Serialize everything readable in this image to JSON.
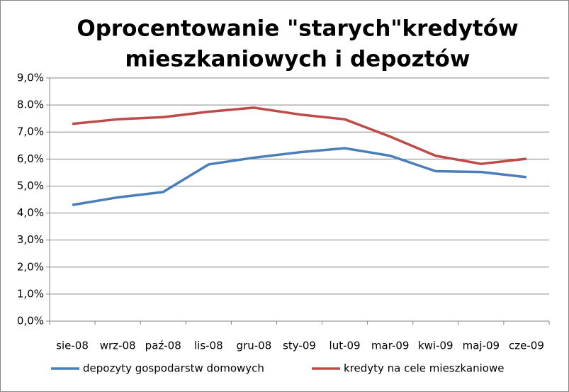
{
  "chart_data": {
    "type": "line",
    "title": [
      "Oprocentowanie  \"starych\"kredytów",
      "mieszkaniowych i depoztów"
    ],
    "categories": [
      "sie-08",
      "wrz-08",
      "paź-08",
      "lis-08",
      "gru-08",
      "sty-09",
      "lut-09",
      "mar-09",
      "kwi-09",
      "maj-09",
      "cze-09"
    ],
    "series": [
      {
        "name": "depozyty gospodarstw domowych",
        "color": "#4a7ebb",
        "values": [
          4.3,
          4.58,
          4.78,
          5.8,
          6.05,
          6.25,
          6.4,
          6.12,
          5.55,
          5.52,
          5.33
        ]
      },
      {
        "name": "kredyty na cele mieszkaniowe",
        "color": "#be4b48",
        "values": [
          7.3,
          7.47,
          7.55,
          7.75,
          7.9,
          7.65,
          7.47,
          6.83,
          6.12,
          5.82,
          6.01
        ]
      }
    ],
    "ylim": [
      0,
      9
    ],
    "yticks": [
      {
        "value": 0,
        "label": "0,0%"
      },
      {
        "value": 1,
        "label": "1,0%"
      },
      {
        "value": 2,
        "label": "2,0%"
      },
      {
        "value": 3,
        "label": "3,0%"
      },
      {
        "value": 4,
        "label": "4,0%"
      },
      {
        "value": 5,
        "label": "5,0%"
      },
      {
        "value": 6,
        "label": "6,0%"
      },
      {
        "value": 7,
        "label": "7,0%"
      },
      {
        "value": 8,
        "label": "8.0%"
      },
      {
        "value": 9,
        "label": "9,0%"
      }
    ],
    "grid": true,
    "legend": "bottom"
  }
}
